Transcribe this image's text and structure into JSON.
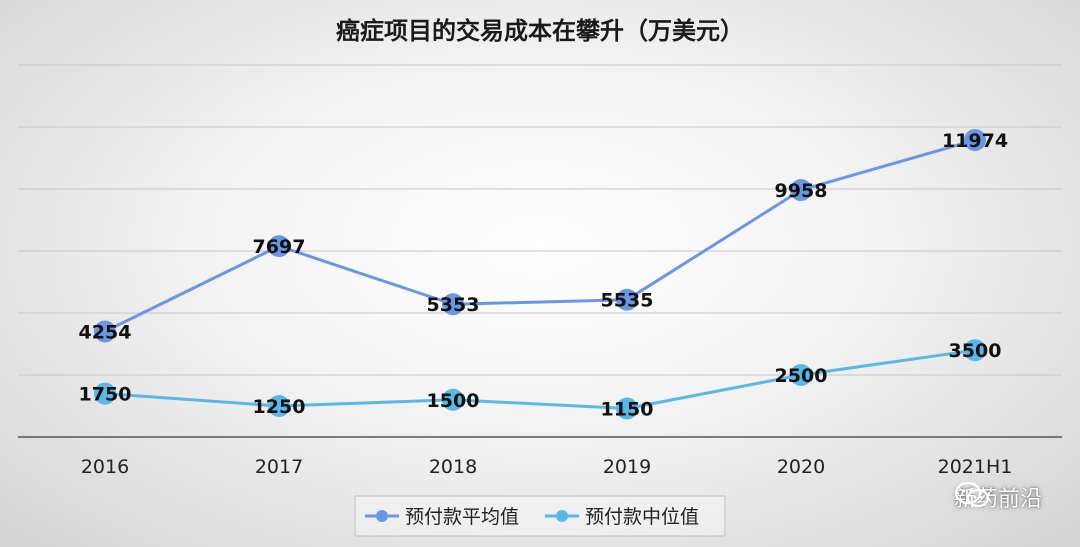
{
  "chart_data": {
    "type": "line",
    "title": "癌症项目的交易成本在攀升（万美元）",
    "categories": [
      "2016",
      "2017",
      "2018",
      "2019",
      "2020",
      "2021H1"
    ],
    "series": [
      {
        "name": "预付款平均值",
        "color": "#6a96e6",
        "values": [
          4254,
          7697,
          5353,
          5535,
          9958,
          11974
        ]
      },
      {
        "name": "预付款中位值",
        "color": "#5ab8e8",
        "values": [
          1750,
          1250,
          1500,
          1150,
          2500,
          3500
        ]
      }
    ],
    "ylim": [
      0,
      15000
    ],
    "grid": true,
    "legend": "bottom-center"
  },
  "watermark": {
    "text": "新药前沿",
    "icon": "wechat-icon"
  }
}
